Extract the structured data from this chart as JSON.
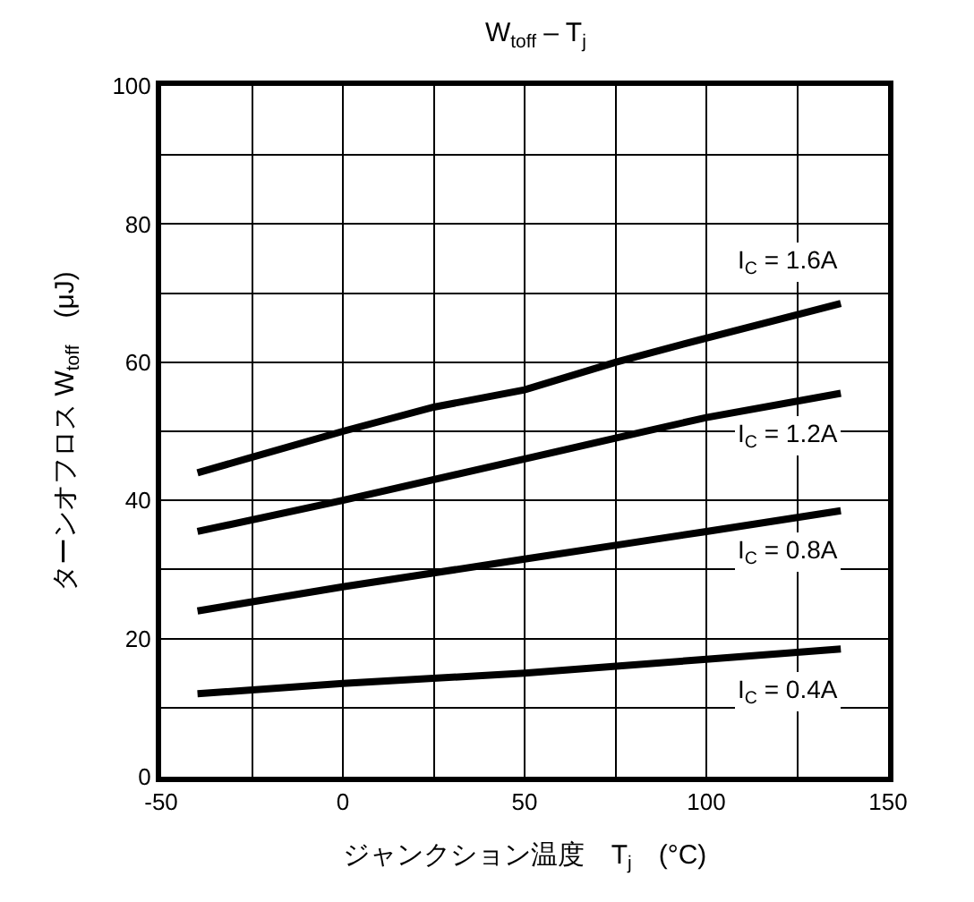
{
  "chart_data": {
    "type": "line",
    "title": "W$_{toff}$ – T$_{j}$",
    "xlabel": "ジャンクション温度　T$_{j}$　(°C)",
    "ylabel": "ターンオフロス W$_{toff}$　(μJ)",
    "series": [
      {
        "name": "I$_{C}$ = 1.6A",
        "color": "#000000",
        "x": [
          -40,
          0,
          25,
          50,
          75,
          100,
          137
        ],
        "values": [
          44,
          50,
          53.5,
          56,
          60,
          63.5,
          68.5
        ]
      },
      {
        "name": "I$_{C}$ = 1.2A",
        "color": "#000000",
        "x": [
          -40,
          0,
          50,
          75,
          100,
          137
        ],
        "values": [
          35.5,
          40,
          46,
          49,
          52,
          55.5
        ]
      },
      {
        "name": "I$_{C}$ = 0.8A",
        "color": "#000000",
        "x": [
          -40,
          0,
          25,
          50,
          75,
          100,
          137
        ],
        "values": [
          24,
          27.5,
          29.5,
          31.5,
          33.5,
          35.5,
          38.5
        ]
      },
      {
        "name": "I$_{C}$ = 0.4A",
        "color": "#000000",
        "x": [
          -40,
          0,
          50,
          100,
          137
        ],
        "values": [
          12,
          13.5,
          15,
          17,
          18.5
        ]
      }
    ],
    "xlim": [
      -50,
      150
    ],
    "xticks": [
      -50,
      {
        "value": -25,
        "label": null
      },
      0,
      {
        "value": 25,
        "label": null
      },
      50,
      {
        "value": 75,
        "label": null
      },
      100,
      {
        "value": 125,
        "label": null
      },
      150
    ],
    "ylim": [
      0,
      100
    ],
    "yticks": [
      0,
      {
        "value": 10,
        "label": null
      },
      20,
      {
        "value": 30,
        "label": null
      },
      40,
      {
        "value": 50,
        "label": null
      },
      60,
      {
        "value": 70,
        "label": null
      },
      80,
      {
        "value": 90,
        "label": null
      },
      100
    ],
    "grid": true,
    "legend": false,
    "marker": "none",
    "line_style": "solid"
  }
}
